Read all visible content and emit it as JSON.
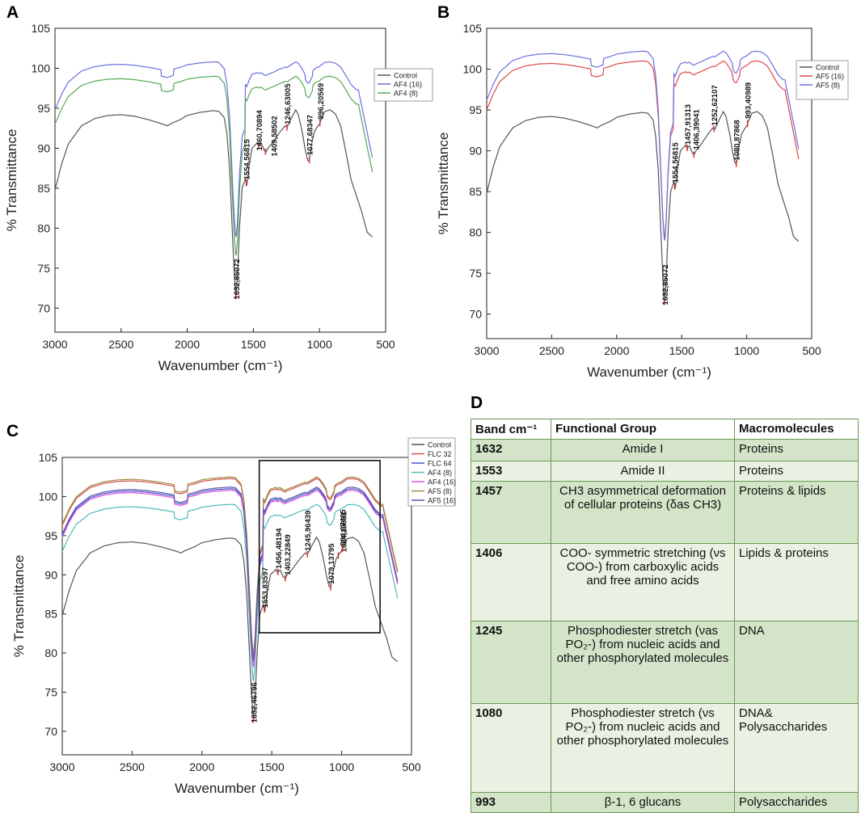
{
  "panels": {
    "A": "A",
    "B": "B",
    "C": "C",
    "D": "D"
  },
  "chart_data": [
    {
      "id": "A",
      "type": "line",
      "title": "",
      "xlabel": "Wavenumber (cm⁻¹)",
      "ylabel": "% Transmittance",
      "xlim": [
        3000,
        500
      ],
      "ylim": [
        67,
        105
      ],
      "xticks": [
        "3000",
        "2500",
        "2000",
        "1500",
        "1000",
        "500"
      ],
      "yticks": [
        "70",
        "75",
        "80",
        "85",
        "90",
        "95",
        "100",
        "105"
      ],
      "legend": [
        "Control",
        "AF4 (16)",
        "AF4 (8)"
      ],
      "peaks": [
        "1632,85072",
        "1554,56815",
        "1460,70894",
        "1409,58502",
        "1246,63005",
        "1077,68347",
        "996,20569"
      ]
    },
    {
      "id": "B",
      "type": "line",
      "title": "",
      "xlabel": "Wavenumber (cm⁻¹)",
      "ylabel": "% Transmittance",
      "xlim": [
        3000,
        500
      ],
      "ylim": [
        67,
        105
      ],
      "xticks": [
        "3000",
        "2500",
        "2000",
        "1500",
        "1000",
        "500"
      ],
      "yticks": [
        "70",
        "75",
        "80",
        "85",
        "90",
        "95",
        "100",
        "105"
      ],
      "legend": [
        "Control",
        "AF5 (16)",
        "AF5 (8)"
      ],
      "peaks": [
        "1632,85072",
        "1554,56815",
        "1457,91313",
        "1406,39041",
        "1252,62107",
        "1080,87868",
        "993,40989"
      ]
    },
    {
      "id": "C",
      "type": "line",
      "title": "",
      "xlabel": "Wavenumber (cm⁻¹)",
      "ylabel": "% Transmittance",
      "xlim": [
        3000,
        500
      ],
      "ylim": [
        67,
        105
      ],
      "xticks": [
        "3000",
        "2500",
        "2000",
        "1500",
        "1000",
        "500"
      ],
      "yticks": [
        "70",
        "75",
        "80",
        "85",
        "90",
        "95",
        "100",
        "105"
      ],
      "legend": [
        "Control",
        "FLC 32",
        "FLC 64",
        "AF4 (8)",
        "AF4 (16)",
        "AF5 (8)",
        "AF5 (16)"
      ],
      "peaks": [
        "1632,46796",
        "1553,83597",
        "1456,48194",
        "1403,22849",
        "1245,96439",
        "1079,13795",
        "1024,19891",
        "994,67465"
      ]
    }
  ],
  "colors": {
    "control": "#555555",
    "af4_16": "#6b6fe0",
    "af4_8": "#55a855",
    "af5_16": "#e04848",
    "af5_8": "#6b6fe0",
    "flc32": "#d05050",
    "flc64": "#4455cc",
    "af4_8_c": "#4fb8b8",
    "af4_16_c": "#e050e0",
    "af5_8_c": "#a08a40",
    "af5_16_c": "#5555aa",
    "peak_marker": "#e03030"
  },
  "table": {
    "headers": {
      "band": "Band cm⁻¹",
      "group": "Functional Group",
      "macro": "Macromolecules"
    },
    "rows": [
      {
        "band": "1632",
        "group": "Amide I",
        "macro": "Proteins"
      },
      {
        "band": "1553",
        "group": "Amide II",
        "macro": "Proteins"
      },
      {
        "band": "1457",
        "group": "CH3 asymmetrical deformation of cellular proteins (δas CH3)",
        "macro": "Proteins & lipids"
      },
      {
        "band": "1406",
        "group": "COO- symmetric stretching (νs COO-) from carboxylic acids and free amino acids",
        "macro": "Lipids & proteins"
      },
      {
        "band": "1245",
        "group": "Phosphodiester stretch (νas PO₂-) from nucleic acids and other phosphorylated molecules",
        "macro": "DNA"
      },
      {
        "band": "1080",
        "group": "Phosphodiester stretch (νs PO₂-) from nucleic acids and other phosphorylated molecules",
        "macro": "DNA& Polysaccharides"
      },
      {
        "band": "993",
        "group": "β-1, 6 glucans",
        "macro": "Polysaccharides"
      }
    ]
  }
}
